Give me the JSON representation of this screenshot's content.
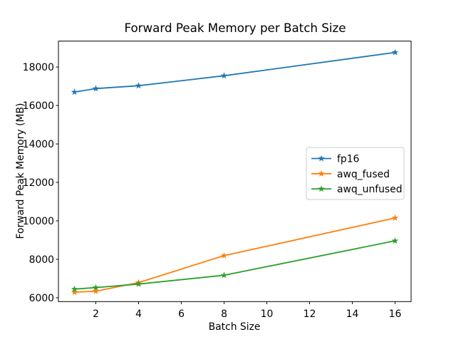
{
  "chart_data": {
    "type": "line",
    "title": "Forward Peak Memory per Batch Size",
    "xlabel": "Batch Size",
    "ylabel": "Forward Peak Memory (MB)",
    "x": [
      1,
      2,
      4,
      8,
      16
    ],
    "series": [
      {
        "name": "fp16",
        "color": "#1f77b4",
        "values": [
          16700,
          16880,
          17030,
          17550,
          18760
        ]
      },
      {
        "name": "awq_fused",
        "color": "#ff7f0e",
        "values": [
          6290,
          6340,
          6790,
          8190,
          10150
        ]
      },
      {
        "name": "awq_unfused",
        "color": "#2ca02c",
        "values": [
          6450,
          6530,
          6710,
          7170,
          8960
        ]
      }
    ],
    "xticks": [
      2,
      4,
      6,
      8,
      10,
      12,
      14,
      16
    ],
    "yticks": [
      6000,
      8000,
      10000,
      12000,
      14000,
      16000,
      18000
    ],
    "xlim": [
      0.25,
      16.75
    ],
    "ylim": [
      5800,
      19350
    ],
    "grid": false,
    "marker": "star",
    "legend_position": "center right",
    "background_color": "#ffffff",
    "axis_color": "#000000",
    "legend_border_color": "#cccccc"
  }
}
